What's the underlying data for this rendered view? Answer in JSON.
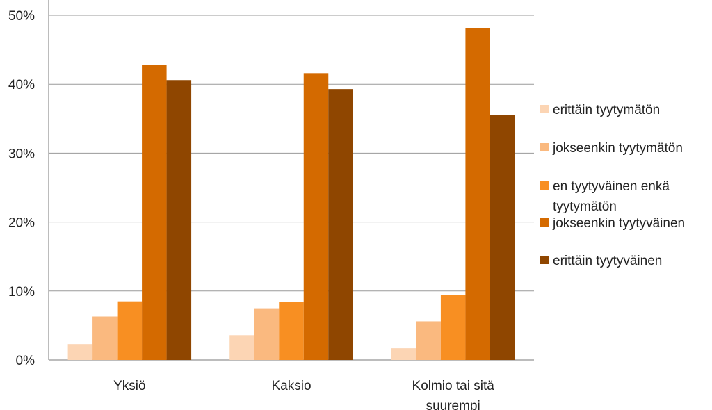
{
  "chart_data": {
    "type": "bar",
    "title": "",
    "xlabel": "",
    "ylabel": "",
    "ylim": [
      0,
      50
    ],
    "y_ticks": [
      0,
      10,
      20,
      30,
      40,
      50
    ],
    "y_tick_labels": [
      "0%",
      "10%",
      "20%",
      "30%",
      "40%",
      "50%"
    ],
    "grid": true,
    "legend_position": "right",
    "categories": [
      [
        "Yksiö"
      ],
      [
        "Kaksio"
      ],
      [
        "Kolmio tai sitä",
        "suurempi"
      ]
    ],
    "series": [
      {
        "name": [
          "erittäin tyytymätön"
        ],
        "color": "#fcd5b4",
        "values": [
          2.3,
          3.6,
          1.7
        ]
      },
      {
        "name": [
          "jokseenkin tyytymätön"
        ],
        "color": "#fab97f",
        "values": [
          6.3,
          7.5,
          5.6
        ]
      },
      {
        "name": [
          "en tyytyväinen enkä",
          "tyytymätön"
        ],
        "color": "#f88f22",
        "values": [
          8.5,
          8.4,
          9.4
        ]
      },
      {
        "name": [
          "jokseenkin tyytyväinen"
        ],
        "color": "#d46a00",
        "values": [
          42.8,
          41.6,
          48.1
        ]
      },
      {
        "name": [
          "erittäin tyytyväinen"
        ],
        "color": "#8f4600",
        "values": [
          40.6,
          39.3,
          35.5
        ]
      }
    ]
  }
}
